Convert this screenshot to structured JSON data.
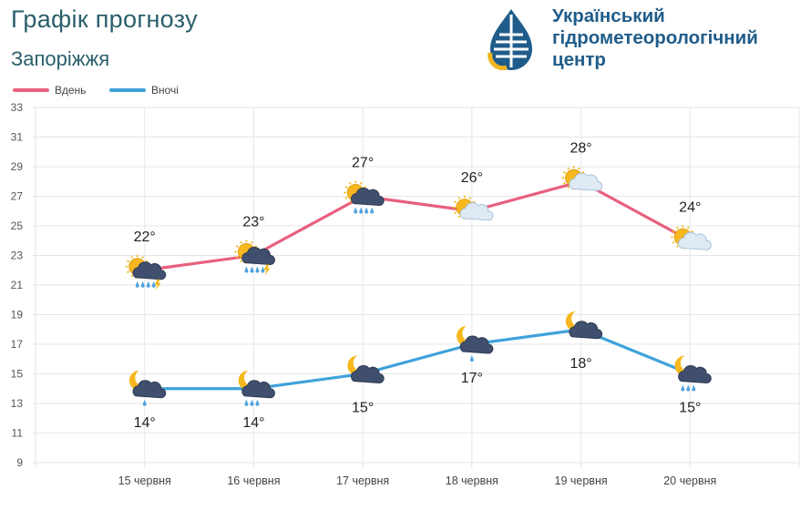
{
  "header": {
    "title": "Графік прогнозу",
    "city": "Запоріжжя"
  },
  "organization": {
    "name_lines": [
      "Український",
      "гідрометеорологічний",
      "центр"
    ],
    "logo_icon": "water-drop-sun-logo",
    "colors": {
      "blue": "#1f5c8a",
      "yellow": "#f2b61f"
    }
  },
  "legend": [
    {
      "label": "Вдень",
      "color": "#e8607e"
    },
    {
      "label": "Вночі",
      "color": "#3fa2db"
    }
  ],
  "chart_data": {
    "type": "line",
    "categories": [
      "15 червня",
      "16 червня",
      "17 червня",
      "18 червня",
      "19 червня",
      "20 червня"
    ],
    "series": [
      {
        "name": "Вдень",
        "color": "#e8607e",
        "values": [
          22,
          23,
          27,
          26,
          28,
          24
        ],
        "labels": [
          "22°",
          "23°",
          "27°",
          "26°",
          "28°",
          "24°"
        ],
        "icons": [
          "sun-cloud-rain-lightning-icon",
          "sun-cloud-rain-lightning-icon",
          "sun-cloud-rain-icon",
          "sun-cloud-icon",
          "sun-cloud-icon",
          "sun-cloud-icon"
        ]
      },
      {
        "name": "Вночі",
        "color": "#3fa2db",
        "values": [
          14,
          14,
          15,
          17,
          18,
          15
        ],
        "labels": [
          "14°",
          "14°",
          "15°",
          "17°",
          "18°",
          "15°"
        ],
        "icons": [
          "moon-cloud-drop-icon",
          "moon-cloud-rain-icon",
          "moon-cloud-icon",
          "moon-cloud-drop-icon",
          "moon-cloud-icon",
          "moon-cloud-rain-icon"
        ]
      }
    ],
    "ylim": [
      9,
      33
    ],
    "yticks": [
      9,
      11,
      13,
      15,
      17,
      19,
      21,
      23,
      25,
      27,
      29,
      31,
      33
    ],
    "grid": true,
    "legend_position": "top-left",
    "xlabel": "",
    "ylabel": ""
  }
}
